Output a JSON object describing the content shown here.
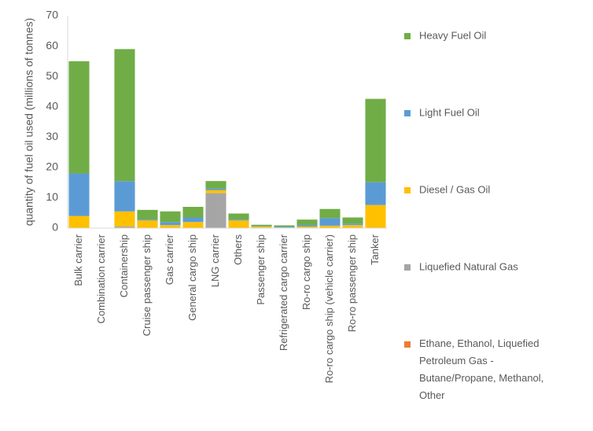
{
  "chart_data": {
    "type": "stacked_bar",
    "y_label": "quantity of fuel oil used (millions of tonnes)",
    "categories": [
      "Bulk carrier",
      "Combination carrier",
      "Containership",
      "Cruise passenger ship",
      "Gas carrier",
      "General cargo ship",
      "LNG carrier",
      "Others",
      "Passenger ship",
      "Refrigerated cargo carrier",
      "Ro-ro cargo ship",
      "Ro-ro cargo ship (vehicle carrier)",
      "Ro-ro passenger ship",
      "Tanker"
    ],
    "series": [
      {
        "name": "Ethane, Ethanol, Liquefied Petroleum Gas - Butane/Propane, Methanol, Other",
        "color": "#ed7d31",
        "values": [
          0,
          0,
          0,
          0,
          0,
          0,
          0,
          0,
          0,
          0,
          0,
          0,
          0,
          0.1
        ]
      },
      {
        "name": "Liquefied Natural Gas",
        "color": "#a5a5a5",
        "values": [
          0,
          0,
          0.5,
          0,
          0,
          0,
          11.5,
          0,
          0,
          0,
          0,
          0,
          0,
          0
        ]
      },
      {
        "name": "Diesel / Gas Oil",
        "color": "#ffc000",
        "values": [
          4,
          0,
          5,
          2.5,
          1,
          2,
          1,
          2.5,
          0.5,
          0.2,
          0.5,
          0.8,
          1,
          7.5
        ]
      },
      {
        "name": "Light Fuel Oil",
        "color": "#5b9bd5",
        "values": [
          14,
          0,
          10,
          0.3,
          1,
          1.5,
          0.5,
          0.3,
          0.2,
          0.3,
          0.5,
          2.5,
          0.5,
          7.5
        ]
      },
      {
        "name": "Heavy Fuel Oil",
        "color": "#70ad47",
        "values": [
          37,
          0.1,
          43.5,
          3.2,
          3.5,
          3.5,
          2.5,
          2,
          0.4,
          0.4,
          1.8,
          3,
          2,
          27.5
        ]
      }
    ],
    "ylim": [
      0,
      70
    ],
    "yticks": [
      0,
      10,
      20,
      30,
      40,
      50,
      60,
      70
    ],
    "grid": false
  }
}
